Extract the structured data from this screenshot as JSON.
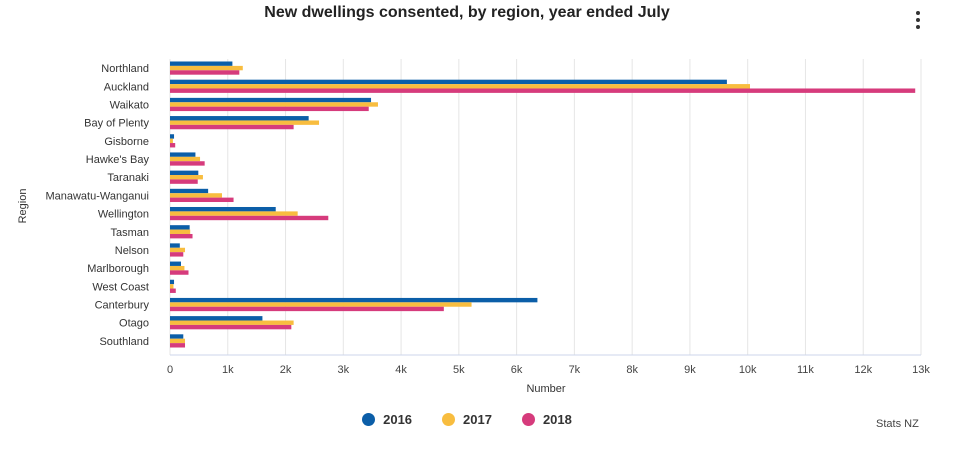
{
  "header": {
    "title": "New dwellings consented, by region, year ended July",
    "menu_icon": "more-vertical-icon"
  },
  "source": "Stats NZ",
  "colors": {
    "2016": "#0b5ea8",
    "2017": "#f8bd3f",
    "2018": "#d63b7c"
  },
  "chart_data": {
    "type": "bar",
    "orientation": "horizontal",
    "title": "New dwellings consented, by region, year ended July",
    "xlabel": "Number",
    "ylabel": "Region",
    "xlim": [
      0,
      13000
    ],
    "x_ticks": [
      0,
      1000,
      2000,
      3000,
      4000,
      5000,
      6000,
      7000,
      8000,
      9000,
      10000,
      11000,
      12000,
      13000
    ],
    "x_tick_labels": [
      "0",
      "1k",
      "2k",
      "3k",
      "4k",
      "5k",
      "6k",
      "7k",
      "8k",
      "9k",
      "10k",
      "11k",
      "12k",
      "13k"
    ],
    "categories": [
      "Northland",
      "Auckland",
      "Waikato",
      "Bay of Plenty",
      "Gisborne",
      "Hawke's Bay",
      "Taranaki",
      "Manawatu-Wanganui",
      "Wellington",
      "Tasman",
      "Nelson",
      "Marlborough",
      "West Coast",
      "Canterbury",
      "Otago",
      "Southland"
    ],
    "series": [
      {
        "name": "2016",
        "values": [
          1080,
          9640,
          3480,
          2400,
          70,
          440,
          490,
          660,
          1830,
          340,
          170,
          190,
          70,
          6360,
          1600,
          230
        ]
      },
      {
        "name": "2017",
        "values": [
          1260,
          10040,
          3600,
          2580,
          50,
          520,
          570,
          900,
          2210,
          350,
          260,
          250,
          60,
          5220,
          2140,
          260
        ]
      },
      {
        "name": "2018",
        "values": [
          1200,
          12900,
          3440,
          2140,
          90,
          600,
          480,
          1100,
          2740,
          390,
          230,
          320,
          100,
          4740,
          2100,
          260
        ]
      }
    ],
    "legend_position": "bottom",
    "grid": true
  }
}
